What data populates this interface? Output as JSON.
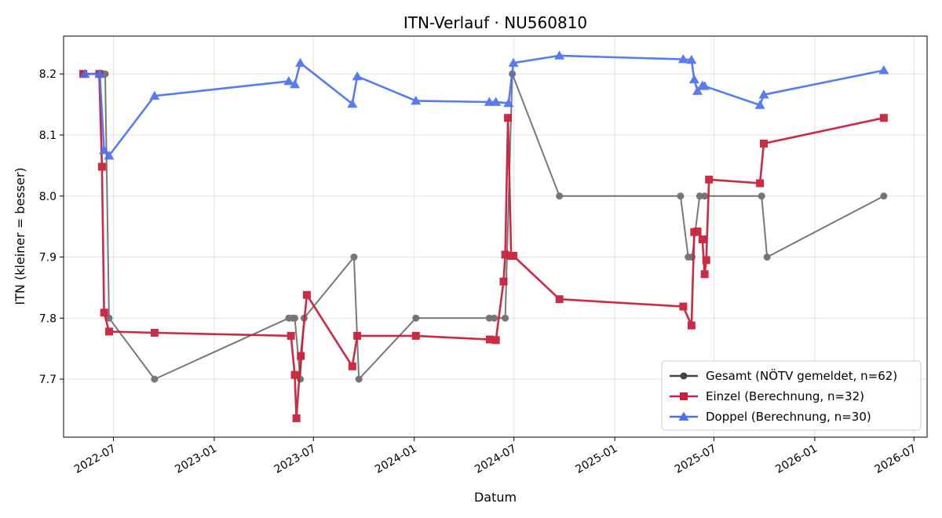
{
  "chart_data": {
    "type": "line",
    "title": "ITN-Verlauf · NU560810",
    "xlabel": "Datum",
    "ylabel": "ITN  (kleiner = besser)",
    "x_type": "date",
    "xlim": [
      "2022-04-01",
      "2026-07-25"
    ],
    "ylim": [
      7.605,
      8.262
    ],
    "x_ticks": [
      "2022-07-01",
      "2023-01-01",
      "2023-07-01",
      "2024-01-01",
      "2024-07-01",
      "2025-01-01",
      "2025-07-01",
      "2026-01-01",
      "2026-07-01"
    ],
    "x_tick_labels": [
      "2022-07",
      "2023-01",
      "2023-07",
      "2024-01",
      "2024-07",
      "2025-01",
      "2025-07",
      "2026-01",
      "2026-07"
    ],
    "y_ticks": [
      7.7,
      7.8,
      7.9,
      8.0,
      8.1,
      8.2
    ],
    "y_tick_labels": [
      "7.7",
      "7.8",
      "7.9",
      "8.0",
      "8.1",
      "8.2"
    ],
    "grid": true,
    "legend_position": "lower-right",
    "series": [
      {
        "name": "Gesamt (NÖTV gemeldet, n=62)",
        "color": "#444444",
        "marker": "circle",
        "points": [
          [
            "2022-05-07",
            8.2
          ],
          [
            "2022-06-05",
            8.2
          ],
          [
            "2022-06-12",
            8.2
          ],
          [
            "2022-06-16",
            8.2
          ],
          [
            "2022-06-23",
            7.8
          ],
          [
            "2022-09-14",
            7.7
          ],
          [
            "2023-05-17",
            7.8
          ],
          [
            "2023-05-24",
            7.8
          ],
          [
            "2023-05-28",
            7.8
          ],
          [
            "2023-06-07",
            7.7
          ],
          [
            "2023-06-14",
            7.8
          ],
          [
            "2023-09-13",
            7.9
          ],
          [
            "2023-09-22",
            7.7
          ],
          [
            "2024-01-04",
            7.8
          ],
          [
            "2024-05-17",
            7.8
          ],
          [
            "2024-05-26",
            7.8
          ],
          [
            "2024-06-15",
            7.8
          ],
          [
            "2024-06-28",
            8.2
          ],
          [
            "2024-09-22",
            8.0
          ],
          [
            "2025-05-01",
            8.0
          ],
          [
            "2025-05-15",
            7.9
          ],
          [
            "2025-05-22",
            7.9
          ],
          [
            "2025-06-05",
            8.0
          ],
          [
            "2025-06-14",
            8.0
          ],
          [
            "2025-09-26",
            8.0
          ],
          [
            "2025-10-06",
            7.9
          ],
          [
            "2026-05-07",
            8.0
          ]
        ]
      },
      {
        "name": "Einzel (Berechnung, n=32)",
        "color": "#c8203c",
        "marker": "square",
        "points": [
          [
            "2022-05-07",
            8.2
          ],
          [
            "2022-06-05",
            8.2
          ],
          [
            "2022-06-10",
            8.048
          ],
          [
            "2022-06-14",
            7.809
          ],
          [
            "2022-06-23",
            7.778
          ],
          [
            "2022-09-14",
            7.776
          ],
          [
            "2023-05-21",
            7.771
          ],
          [
            "2023-05-28",
            7.707
          ],
          [
            "2023-05-31",
            7.636
          ],
          [
            "2023-06-08",
            7.738
          ],
          [
            "2023-06-19",
            7.838
          ],
          [
            "2023-09-10",
            7.721
          ],
          [
            "2023-09-19",
            7.771
          ],
          [
            "2024-01-04",
            7.771
          ],
          [
            "2024-05-18",
            7.765
          ],
          [
            "2024-05-29",
            7.764
          ],
          [
            "2024-06-12",
            7.86
          ],
          [
            "2024-06-15",
            7.904
          ],
          [
            "2024-06-20",
            8.128
          ],
          [
            "2024-06-26",
            7.902
          ],
          [
            "2024-06-30",
            7.902
          ],
          [
            "2024-09-22",
            7.831
          ],
          [
            "2025-05-06",
            7.819
          ],
          [
            "2025-05-21",
            7.788
          ],
          [
            "2025-05-26",
            7.941
          ],
          [
            "2025-06-01",
            7.942
          ],
          [
            "2025-06-10",
            7.929
          ],
          [
            "2025-06-14",
            7.872
          ],
          [
            "2025-06-17",
            7.895
          ],
          [
            "2025-06-22",
            8.027
          ],
          [
            "2025-09-23",
            8.021
          ],
          [
            "2025-09-30",
            8.086
          ],
          [
            "2026-05-07",
            8.128
          ]
        ]
      },
      {
        "name": "Doppel (Berechnung, n=30)",
        "color": "#4c6ff0",
        "marker": "triangle",
        "points": [
          [
            "2022-05-10",
            8.2
          ],
          [
            "2022-06-06",
            8.2
          ],
          [
            "2022-06-14",
            8.075
          ],
          [
            "2022-06-23",
            8.066
          ],
          [
            "2022-09-14",
            8.164
          ],
          [
            "2023-05-17",
            8.188
          ],
          [
            "2023-05-28",
            8.183
          ],
          [
            "2023-06-07",
            8.218
          ],
          [
            "2023-09-10",
            8.151
          ],
          [
            "2023-09-19",
            8.196
          ],
          [
            "2024-01-04",
            8.156
          ],
          [
            "2024-05-17",
            8.154
          ],
          [
            "2024-05-29",
            8.154
          ],
          [
            "2024-06-21",
            8.152
          ],
          [
            "2024-06-30",
            8.218
          ],
          [
            "2024-09-22",
            8.23
          ],
          [
            "2025-05-06",
            8.224
          ],
          [
            "2025-05-21",
            8.223
          ],
          [
            "2025-05-26",
            8.191
          ],
          [
            "2025-06-01",
            8.172
          ],
          [
            "2025-06-10",
            8.181
          ],
          [
            "2025-06-14",
            8.18
          ],
          [
            "2025-09-23",
            8.149
          ],
          [
            "2025-09-30",
            8.166
          ],
          [
            "2026-05-07",
            8.206
          ]
        ]
      }
    ]
  }
}
